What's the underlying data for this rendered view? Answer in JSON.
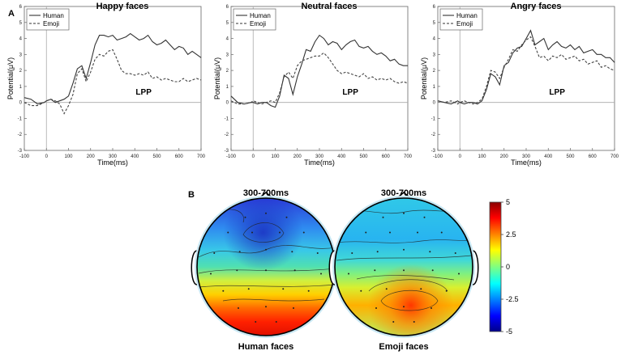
{
  "panel_a_label": "A",
  "panel_b_label": "B",
  "chart_data": [
    {
      "type": "line",
      "title": "Happy faces",
      "xlabel": "Time(ms)",
      "ylabel": "Potential(μV)",
      "xlim": [
        -100,
        700
      ],
      "ylim": [
        -3,
        6
      ],
      "x_ticks": [
        -100,
        0,
        100,
        200,
        300,
        400,
        500,
        600,
        700
      ],
      "y_ticks": [
        -3,
        -2,
        -1,
        0,
        1,
        2,
        3,
        4,
        5,
        6
      ],
      "annotation": "LPP",
      "legend": [
        "Human",
        "Emoji"
      ],
      "series": [
        {
          "name": "Human",
          "style": "solid",
          "x": [
            -100,
            -70,
            -40,
            -10,
            0,
            20,
            40,
            60,
            80,
            100,
            120,
            140,
            160,
            180,
            200,
            220,
            240,
            260,
            280,
            300,
            320,
            340,
            360,
            380,
            400,
            420,
            440,
            460,
            480,
            500,
            520,
            540,
            560,
            580,
            600,
            620,
            640,
            660,
            680,
            700
          ],
          "y": [
            0.3,
            0.2,
            -0.1,
            0.0,
            0.1,
            0.2,
            0.0,
            0.1,
            0.2,
            0.4,
            1.2,
            2.1,
            2.3,
            1.5,
            2.5,
            3.6,
            4.2,
            4.2,
            4.1,
            4.2,
            3.9,
            4.0,
            4.1,
            4.3,
            4.1,
            3.9,
            4.0,
            4.2,
            3.8,
            3.6,
            3.7,
            3.9,
            3.6,
            3.3,
            3.5,
            3.4,
            3.0,
            3.2,
            3.0,
            2.8
          ]
        },
        {
          "name": "Emoji",
          "style": "dashed",
          "x": [
            -100,
            -70,
            -40,
            -10,
            0,
            20,
            40,
            60,
            80,
            100,
            120,
            140,
            160,
            180,
            200,
            220,
            240,
            260,
            280,
            300,
            320,
            340,
            360,
            380,
            400,
            420,
            440,
            460,
            480,
            500,
            520,
            540,
            560,
            580,
            600,
            620,
            640,
            660,
            680,
            700
          ],
          "y": [
            0.0,
            -0.2,
            -0.2,
            0.0,
            0.1,
            0.2,
            0.1,
            -0.1,
            -0.7,
            -0.2,
            0.5,
            1.8,
            2.1,
            1.3,
            1.9,
            2.7,
            3.0,
            2.9,
            3.2,
            3.3,
            2.7,
            2.0,
            1.8,
            1.8,
            1.7,
            1.8,
            1.7,
            1.9,
            1.5,
            1.6,
            1.4,
            1.5,
            1.4,
            1.3,
            1.3,
            1.5,
            1.3,
            1.4,
            1.5,
            1.4
          ]
        }
      ]
    },
    {
      "type": "line",
      "title": "Neutral faces",
      "xlabel": "Time(ms)",
      "ylabel": "Potential(μV)",
      "xlim": [
        -100,
        700
      ],
      "ylim": [
        -3,
        6
      ],
      "x_ticks": [
        -100,
        0,
        100,
        200,
        300,
        400,
        500,
        600,
        700
      ],
      "y_ticks": [
        -3,
        -2,
        -1,
        0,
        1,
        2,
        3,
        4,
        5,
        6
      ],
      "annotation": "LPP",
      "legend": [
        "Human",
        "Emoji"
      ],
      "series": [
        {
          "name": "Human",
          "style": "solid",
          "x": [
            -100,
            -70,
            -40,
            -10,
            0,
            20,
            40,
            60,
            80,
            100,
            120,
            140,
            160,
            180,
            200,
            220,
            240,
            260,
            280,
            300,
            320,
            340,
            360,
            380,
            400,
            420,
            440,
            460,
            480,
            500,
            520,
            540,
            560,
            580,
            600,
            620,
            640,
            660,
            680,
            700
          ],
          "y": [
            0.4,
            0.0,
            -0.1,
            0.0,
            0.0,
            -0.1,
            0.0,
            0.0,
            -0.2,
            -0.3,
            0.4,
            1.7,
            1.5,
            0.5,
            1.6,
            2.4,
            3.3,
            3.2,
            3.8,
            4.2,
            4.0,
            3.6,
            3.8,
            3.7,
            3.3,
            3.6,
            3.8,
            3.9,
            3.5,
            3.4,
            3.5,
            3.2,
            3.0,
            3.1,
            2.9,
            2.6,
            2.7,
            2.4,
            2.3,
            2.3
          ]
        },
        {
          "name": "Emoji",
          "style": "dashed",
          "x": [
            -100,
            -70,
            -40,
            -10,
            0,
            20,
            40,
            60,
            80,
            100,
            120,
            140,
            160,
            180,
            200,
            220,
            240,
            260,
            280,
            300,
            320,
            340,
            360,
            380,
            400,
            420,
            440,
            460,
            480,
            500,
            520,
            540,
            560,
            580,
            600,
            620,
            640,
            660,
            680,
            700
          ],
          "y": [
            0.1,
            -0.1,
            -0.1,
            0.0,
            0.1,
            0.0,
            -0.1,
            0.0,
            0.1,
            0.0,
            0.6,
            1.6,
            1.9,
            1.5,
            2.3,
            2.6,
            2.7,
            2.8,
            2.9,
            2.9,
            3.1,
            2.8,
            2.4,
            2.0,
            1.8,
            1.9,
            1.8,
            1.7,
            1.6,
            1.8,
            1.5,
            1.6,
            1.4,
            1.5,
            1.4,
            1.5,
            1.3,
            1.2,
            1.3,
            1.2
          ]
        }
      ]
    },
    {
      "type": "line",
      "title": "Angry faces",
      "xlabel": "Time(ms)",
      "ylabel": "Potential(μV)",
      "xlim": [
        -100,
        700
      ],
      "ylim": [
        -3,
        6
      ],
      "x_ticks": [
        -100,
        0,
        100,
        200,
        300,
        400,
        500,
        600,
        700
      ],
      "y_ticks": [
        -3,
        -2,
        -1,
        0,
        1,
        2,
        3,
        4,
        5,
        6
      ],
      "annotation": "LPP",
      "legend": [
        "Human",
        "Emoji"
      ],
      "series": [
        {
          "name": "Human",
          "style": "solid",
          "x": [
            -100,
            -70,
            -40,
            -10,
            0,
            20,
            40,
            60,
            80,
            100,
            120,
            140,
            160,
            180,
            200,
            220,
            240,
            260,
            280,
            300,
            320,
            340,
            360,
            380,
            400,
            420,
            440,
            460,
            480,
            500,
            520,
            540,
            560,
            580,
            600,
            620,
            640,
            660,
            680,
            700
          ],
          "y": [
            0.1,
            0.0,
            -0.1,
            0.1,
            0.0,
            -0.1,
            0.0,
            0.0,
            -0.1,
            0.1,
            0.8,
            1.8,
            1.6,
            1.1,
            2.3,
            2.5,
            3.1,
            3.4,
            3.5,
            4.0,
            4.5,
            3.6,
            3.8,
            4.0,
            3.3,
            3.6,
            3.8,
            3.5,
            3.4,
            3.6,
            3.3,
            3.5,
            3.1,
            3.2,
            3.3,
            3.0,
            3.0,
            2.8,
            2.8,
            2.5
          ]
        },
        {
          "name": "Emoji",
          "style": "dashed",
          "x": [
            -100,
            -70,
            -40,
            -10,
            0,
            20,
            40,
            60,
            80,
            100,
            120,
            140,
            160,
            180,
            200,
            220,
            240,
            260,
            280,
            300,
            320,
            340,
            360,
            380,
            400,
            420,
            440,
            460,
            480,
            500,
            520,
            540,
            560,
            580,
            600,
            620,
            640,
            660,
            680,
            700
          ],
          "y": [
            0.1,
            0.0,
            0.1,
            -0.1,
            0.0,
            0.1,
            0.0,
            -0.1,
            0.0,
            0.2,
            1.0,
            2.0,
            1.9,
            1.5,
            2.2,
            2.7,
            3.3,
            3.2,
            3.6,
            3.9,
            4.1,
            3.5,
            2.8,
            2.9,
            2.6,
            2.9,
            2.8,
            3.0,
            2.7,
            2.8,
            2.9,
            2.6,
            2.7,
            2.4,
            2.5,
            2.6,
            2.2,
            2.3,
            2.1,
            2.0
          ]
        }
      ]
    },
    {
      "type": "heatmap",
      "subtype": "scalp-topography",
      "title": "300-700ms",
      "caption": "Human faces",
      "clim": [
        -5,
        5
      ],
      "description_values": {
        "frontal": -3,
        "central": 0,
        "posterior": 4
      }
    },
    {
      "type": "heatmap",
      "subtype": "scalp-topography",
      "title": "300-700ms",
      "caption": "Emoji faces",
      "clim": [
        -5,
        5
      ],
      "description_values": {
        "frontal": -1.5,
        "central": 0,
        "posterior": 3
      }
    },
    {
      "type": "colorbar",
      "ticks": [
        5,
        2.5,
        0,
        -2.5,
        -5
      ],
      "tick_labels": [
        "5",
        "2.5",
        "0",
        "-2.5",
        "-5"
      ],
      "colors": [
        "#800000",
        "#ff0000",
        "#ffff00",
        "#00ffff",
        "#0000ff",
        "#000080"
      ]
    }
  ]
}
